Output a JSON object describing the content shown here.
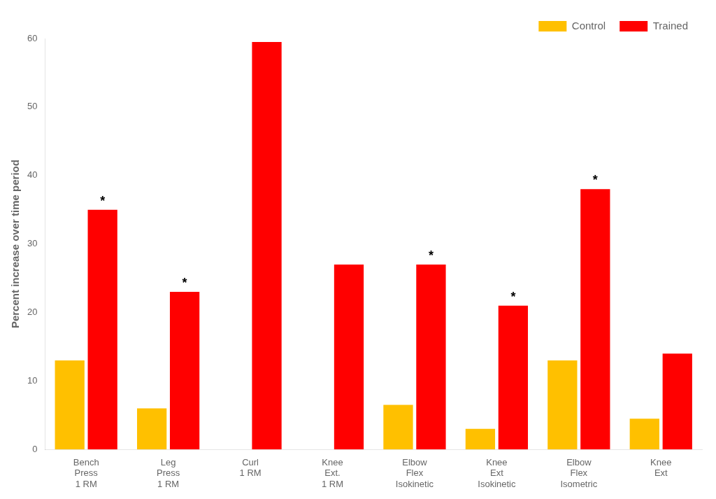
{
  "chart_data": {
    "type": "bar",
    "categories": [
      "Bench\nPress\n1 RM",
      "Leg\nPress\n1 RM",
      "Curl\n1 RM",
      "Knee\nExt.\n1 RM",
      "Elbow\nFlex\nIsokinetic",
      "Knee\nExt\nIsokinetic",
      "Elbow\nFlex\nIsometric",
      "Knee\nExt"
    ],
    "series": [
      {
        "name": "Control",
        "color": "#FFC000",
        "values": [
          13,
          6,
          0,
          0,
          6.5,
          3,
          13,
          4.5
        ]
      },
      {
        "name": "Trained",
        "color": "#FF0000",
        "values": [
          35,
          23,
          59.5,
          27,
          27,
          21,
          38,
          14
        ]
      }
    ],
    "annotations": [
      {
        "text": "*",
        "category": "Bench\nPress\n1 RM",
        "series": "Trained"
      },
      {
        "text": "*",
        "category": "Leg\nPress\n1 RM",
        "series": "Trained"
      },
      {
        "text": "*",
        "category": "Elbow\nFlex\nIsokinetic",
        "series": "Trained"
      },
      {
        "text": "*",
        "category": "Knee\nExt\nIsokinetic",
        "series": "Trained"
      },
      {
        "text": "*",
        "category": "Elbow\nFlex\nIsometric",
        "series": "Trained"
      }
    ],
    "ylabel": "Percent increase over time period",
    "ylim": [
      0,
      60
    ],
    "yticks": [
      0,
      10,
      20,
      30,
      40,
      50,
      60
    ],
    "grid": false,
    "legend": "upper right"
  }
}
